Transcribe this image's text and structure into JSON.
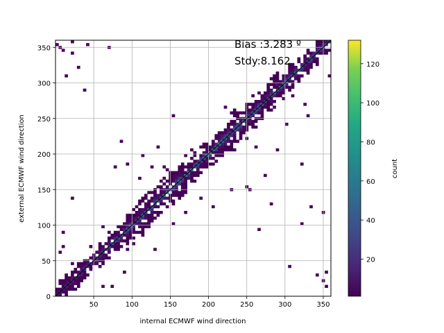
{
  "chart_data": {
    "type": "heatmap",
    "subtype": "2d-histogram",
    "xlabel": "internal ECMWF wind direction",
    "ylabel": "external ECMWF wind direction",
    "xlim": [
      0,
      360
    ],
    "ylim": [
      0,
      360
    ],
    "x_ticks": [
      50,
      100,
      150,
      200,
      250,
      300,
      350
    ],
    "y_ticks": [
      0,
      50,
      100,
      150,
      200,
      250,
      300,
      350
    ],
    "grid": true,
    "bin_size": 4,
    "colormap": "viridis",
    "colorbar": {
      "label": "count",
      "min": 1,
      "max": 132,
      "ticks": [
        20,
        40,
        60,
        80,
        100,
        120
      ],
      "placement": "right"
    },
    "annotations": {
      "bias": "Bias :3.283 º",
      "stdv": "Stdy:8.162"
    },
    "reference_line": {
      "from": [
        0,
        0
      ],
      "to": [
        360,
        360
      ],
      "color": "#000000"
    },
    "description_points": {
      "diagonal_peak_counts": [
        {
          "x": 10,
          "count": 18
        },
        {
          "x": 50,
          "count": 30
        },
        {
          "x": 100,
          "count": 55
        },
        {
          "x": 150,
          "count": 60
        },
        {
          "x": 200,
          "count": 70
        },
        {
          "x": 250,
          "count": 60
        },
        {
          "x": 300,
          "count": 50
        },
        {
          "x": 350,
          "count": 40
        }
      ],
      "outlier_cells": [
        {
          "x": 2,
          "y": 355
        },
        {
          "x": 7,
          "y": 350
        },
        {
          "x": 10,
          "y": 345
        },
        {
          "x": 20,
          "y": 343
        },
        {
          "x": 22,
          "y": 356
        },
        {
          "x": 42,
          "y": 353
        },
        {
          "x": 70,
          "y": 350
        },
        {
          "x": 30,
          "y": 320
        },
        {
          "x": 15,
          "y": 308
        },
        {
          "x": 37,
          "y": 288
        },
        {
          "x": 85,
          "y": 218
        },
        {
          "x": 78,
          "y": 183
        },
        {
          "x": 95,
          "y": 187
        },
        {
          "x": 113,
          "y": 198
        },
        {
          "x": 127,
          "y": 183
        },
        {
          "x": 140,
          "y": 181
        },
        {
          "x": 144,
          "y": 176
        },
        {
          "x": 152,
          "y": 255
        },
        {
          "x": 20,
          "y": 138
        },
        {
          "x": 8,
          "y": 89
        },
        {
          "x": 10,
          "y": 70
        },
        {
          "x": 5,
          "y": 62
        },
        {
          "x": 20,
          "y": 46
        },
        {
          "x": 5,
          "y": 18
        },
        {
          "x": 33,
          "y": 30
        },
        {
          "x": 60,
          "y": 12
        },
        {
          "x": 75,
          "y": 14
        },
        {
          "x": 90,
          "y": 35
        },
        {
          "x": 130,
          "y": 65
        },
        {
          "x": 152,
          "y": 103
        },
        {
          "x": 170,
          "y": 118
        },
        {
          "x": 190,
          "y": 138
        },
        {
          "x": 205,
          "y": 125
        },
        {
          "x": 230,
          "y": 150
        },
        {
          "x": 250,
          "y": 153
        },
        {
          "x": 265,
          "y": 95
        },
        {
          "x": 283,
          "y": 128
        },
        {
          "x": 305,
          "y": 40
        },
        {
          "x": 322,
          "y": 100
        },
        {
          "x": 335,
          "y": 125
        },
        {
          "x": 348,
          "y": 118
        },
        {
          "x": 343,
          "y": 30
        },
        {
          "x": 350,
          "y": 20
        },
        {
          "x": 355,
          "y": 35
        },
        {
          "x": 355,
          "y": 12
        },
        {
          "x": 358,
          "y": 308
        },
        {
          "x": 320,
          "y": 185
        },
        {
          "x": 290,
          "y": 205
        },
        {
          "x": 260,
          "y": 208
        },
        {
          "x": 255,
          "y": 148
        },
        {
          "x": 275,
          "y": 168
        },
        {
          "x": 240,
          "y": 220
        },
        {
          "x": 325,
          "y": 270
        },
        {
          "x": 330,
          "y": 255
        },
        {
          "x": 310,
          "y": 280
        },
        {
          "x": 300,
          "y": 240
        },
        {
          "x": 223,
          "y": 265
        },
        {
          "x": 207,
          "y": 185
        },
        {
          "x": 100,
          "y": 75
        },
        {
          "x": 110,
          "y": 105
        },
        {
          "x": 135,
          "y": 210
        },
        {
          "x": 90,
          "y": 95
        },
        {
          "x": 46,
          "y": 70
        },
        {
          "x": 60,
          "y": 98
        },
        {
          "x": 110,
          "y": 165
        },
        {
          "x": 170,
          "y": 198
        },
        {
          "x": 185,
          "y": 172
        }
      ]
    }
  }
}
